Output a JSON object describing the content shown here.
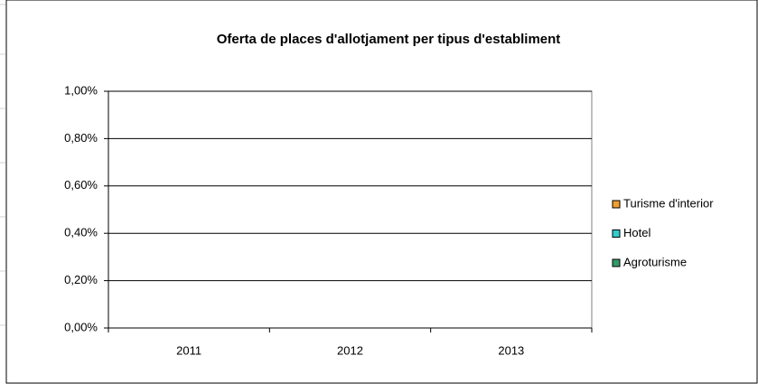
{
  "chart_data": {
    "type": "bar",
    "title": "Oferta de places d'allotjament per tipus d'establiment",
    "categories": [
      "2011",
      "2012",
      "2013"
    ],
    "series": [
      {
        "name": "Turisme d'interior",
        "color": "#f0a030",
        "values": [
          0,
          0,
          0
        ]
      },
      {
        "name": "Hotel",
        "color": "#33cccc",
        "values": [
          0,
          0,
          0
        ]
      },
      {
        "name": "Agroturisme",
        "color": "#339966",
        "values": [
          0,
          0,
          0
        ]
      }
    ],
    "ylim": [
      0,
      1
    ],
    "yticks": [
      {
        "value": 0,
        "label": "0,00%"
      },
      {
        "value": 0.2,
        "label": "0,20%"
      },
      {
        "value": 0.4,
        "label": "0,40%"
      },
      {
        "value": 0.6,
        "label": "0,60%"
      },
      {
        "value": 0.8,
        "label": "0,80%"
      },
      {
        "value": 1,
        "label": "1,00%"
      }
    ],
    "grid": true,
    "legend": "right"
  }
}
